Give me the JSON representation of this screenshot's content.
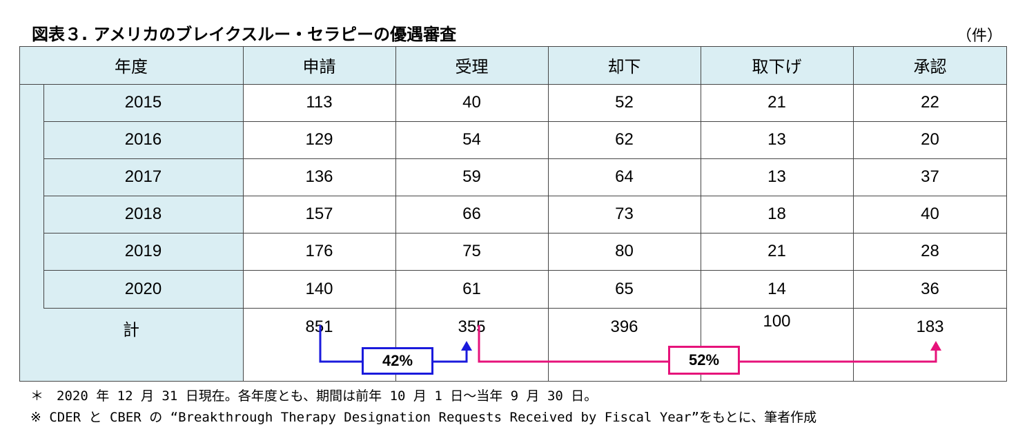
{
  "title": "図表３.  アメリカのブレイクスルー・セラピーの優遇審査",
  "unit": "（件）",
  "table": {
    "headers": [
      "年度",
      "申請",
      "受理",
      "却下",
      "取下げ",
      "承認"
    ],
    "rows": [
      {
        "year": "2015",
        "values": [
          "113",
          "40",
          "52",
          "21",
          "22"
        ]
      },
      {
        "year": "2016",
        "values": [
          "129",
          "54",
          "62",
          "13",
          "20"
        ]
      },
      {
        "year": "2017",
        "values": [
          "136",
          "59",
          "64",
          "13",
          "37"
        ]
      },
      {
        "year": "2018",
        "values": [
          "157",
          "66",
          "73",
          "18",
          "40"
        ]
      },
      {
        "year": "2019",
        "values": [
          "176",
          "75",
          "80",
          "21",
          "28"
        ]
      },
      {
        "year": "2020",
        "values": [
          "140",
          "61",
          "65",
          "14",
          "36"
        ]
      }
    ],
    "total": {
      "label": "計",
      "values": [
        "851",
        "355",
        "396",
        "100",
        "183"
      ]
    }
  },
  "annotations": {
    "accept_rate": "42%",
    "approve_rate": "52%",
    "colors": {
      "accept": "#1a1adc",
      "approve": "#e6127a",
      "header_bg": "#daeef3"
    }
  },
  "notes": [
    "＊　2020 年 12 月 31 日現在。各年度とも、期間は前年 10 月 1 日～当年 9 月 30 日。",
    "※ CDER と CBER の “Breakthrough Therapy Designation Requests Received by Fiscal Year”をもとに、筆者作成"
  ]
}
